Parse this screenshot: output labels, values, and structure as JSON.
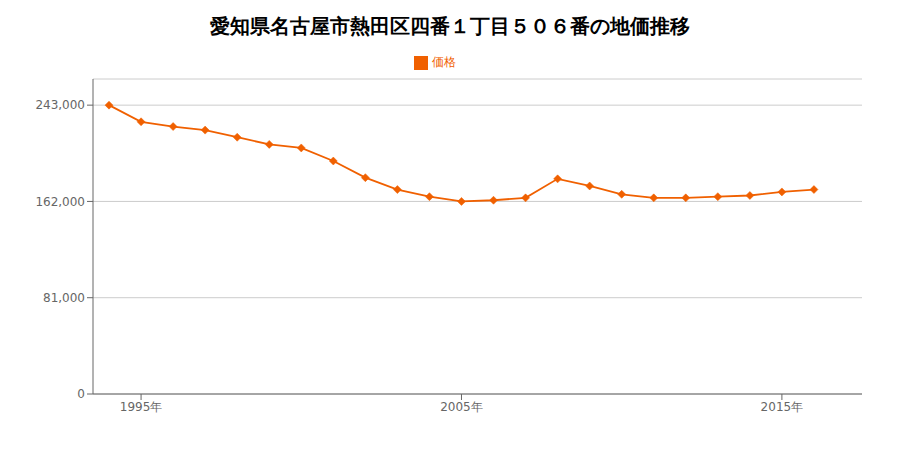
{
  "chart_data": {
    "type": "line",
    "title": "愛知県名古屋市熱田区四番１丁目５０６番の地価推移",
    "x": [
      1994,
      1995,
      1996,
      1997,
      1998,
      1999,
      2000,
      2001,
      2002,
      2003,
      2004,
      2005,
      2006,
      2007,
      2008,
      2009,
      2010,
      2011,
      2012,
      2013,
      2014,
      2015,
      2016
    ],
    "series": [
      {
        "name": "価格",
        "color": "#f06000",
        "marker": "diamond",
        "values": [
          243000,
          229000,
          225000,
          222000,
          216000,
          210000,
          207000,
          196000,
          182000,
          172000,
          166000,
          162000,
          163000,
          165000,
          181000,
          175000,
          168000,
          165000,
          165000,
          166000,
          167000,
          170000,
          172000
        ]
      }
    ],
    "xlim": [
      1993.5,
      2017.5
    ],
    "xticks": [
      {
        "value": 1995,
        "label": "1995年"
      },
      {
        "value": 2005,
        "label": "2005年"
      },
      {
        "value": 2015,
        "label": "2015年"
      }
    ],
    "ylim": [
      0,
      265000
    ],
    "yticks": [
      0,
      {
        "value": 81000,
        "label": "81,000"
      },
      {
        "value": 162000,
        "label": "162,000"
      },
      {
        "value": 243000,
        "label": "243,000"
      }
    ],
    "grid": true,
    "legend": "top"
  }
}
